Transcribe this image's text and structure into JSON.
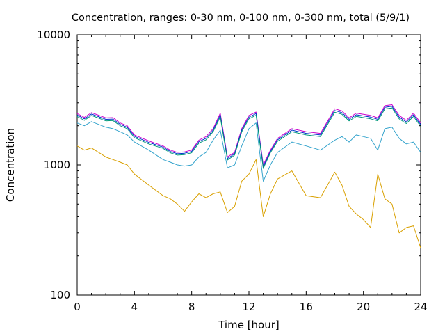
{
  "chart_data": {
    "type": "line",
    "title": "Concentration, ranges: 0-30 nm, 0-100 nm, 0-300 nm, total (5/9/1)",
    "xlabel": "Time [hour]",
    "ylabel": "Concentration",
    "xlim": [
      0,
      24
    ],
    "ylim": [
      100,
      10000
    ],
    "yscale": "log",
    "xticks": [
      0,
      4,
      8,
      12,
      16,
      20,
      24
    ],
    "xtick_labels": [
      "0",
      "4",
      "8",
      "12",
      "16",
      "20",
      "24"
    ],
    "yticks": [
      100,
      1000,
      10000
    ],
    "ytick_labels": [
      "100",
      "1000",
      "10000"
    ],
    "grid": false,
    "legend": "none",
    "series": [
      {
        "color": "#cc00cc",
        "x": [
          0,
          0.5,
          1,
          2,
          2.5,
          3,
          3.5,
          4,
          5,
          6,
          6.5,
          7,
          7.5,
          8,
          8.5,
          9,
          9.5,
          10,
          10.5,
          11,
          11.5,
          12,
          12.5,
          13,
          13.5,
          14,
          15,
          16,
          17,
          18,
          18.5,
          19,
          19.5,
          20,
          20.5,
          21,
          21.5,
          22,
          22.5,
          23,
          23.5,
          24
        ],
        "y": [
          2480,
          2320,
          2520,
          2300,
          2310,
          2100,
          2000,
          1700,
          1530,
          1400,
          1300,
          1250,
          1260,
          1300,
          1550,
          1650,
          1900,
          2500,
          1150,
          1250,
          1900,
          2400,
          2550,
          1000,
          1300,
          1600,
          1900,
          1800,
          1750,
          2700,
          2600,
          2300,
          2500,
          2450,
          2400,
          2300,
          2850,
          2900,
          2400,
          2200,
          2500,
          2100
        ]
      },
      {
        "color": "#0033cc",
        "x": [
          0,
          0.5,
          1,
          2,
          2.5,
          3,
          3.5,
          4,
          5,
          6,
          6.5,
          7,
          7.5,
          8,
          8.5,
          9,
          9.5,
          10,
          10.5,
          11,
          11.5,
          12,
          12.5,
          13,
          13.5,
          14,
          15,
          16,
          17,
          18,
          18.5,
          19,
          19.5,
          20,
          20.5,
          21,
          21.5,
          22,
          22.5,
          23,
          23.5,
          24
        ],
        "y": [
          2420,
          2260,
          2460,
          2240,
          2250,
          2050,
          1950,
          1660,
          1490,
          1370,
          1270,
          1220,
          1230,
          1270,
          1510,
          1600,
          1850,
          2420,
          1120,
          1220,
          1850,
          2330,
          2480,
          970,
          1270,
          1560,
          1850,
          1750,
          1700,
          2620,
          2520,
          2240,
          2430,
          2380,
          2330,
          2240,
          2770,
          2820,
          2330,
          2140,
          2430,
          2040
        ]
      },
      {
        "color": "#00997a",
        "x": [
          0,
          0.5,
          1,
          2,
          2.5,
          3,
          3.5,
          4,
          5,
          6,
          6.5,
          7,
          7.5,
          8,
          8.5,
          9,
          9.5,
          10,
          10.5,
          11,
          11.5,
          12,
          12.5,
          13,
          13.5,
          14,
          15,
          16,
          17,
          18,
          18.5,
          19,
          19.5,
          20,
          20.5,
          21,
          21.5,
          22,
          22.5,
          23,
          23.5,
          24
        ],
        "y": [
          2360,
          2200,
          2400,
          2180,
          2190,
          2000,
          1900,
          1620,
          1450,
          1340,
          1240,
          1190,
          1200,
          1240,
          1470,
          1560,
          1800,
          2340,
          1090,
          1190,
          1800,
          2260,
          2410,
          940,
          1240,
          1520,
          1800,
          1700,
          1650,
          2540,
          2450,
          2180,
          2360,
          2310,
          2260,
          2180,
          2690,
          2740,
          2260,
          2080,
          2360,
          1980
        ]
      },
      {
        "color": "#33a3cc",
        "x": [
          0,
          0.5,
          1,
          2,
          2.5,
          3,
          3.5,
          4,
          5,
          6,
          6.5,
          7,
          7.5,
          8,
          8.5,
          9,
          9.5,
          10,
          10.5,
          11,
          11.5,
          12,
          12.5,
          13,
          13.5,
          14,
          15,
          16,
          17,
          18,
          18.5,
          19,
          19.5,
          20,
          20.5,
          21,
          21.5,
          22,
          22.5,
          23,
          23.5,
          24
        ],
        "y": [
          2100,
          2000,
          2150,
          1950,
          1900,
          1800,
          1700,
          1500,
          1300,
          1100,
          1050,
          1000,
          980,
          1000,
          1150,
          1250,
          1550,
          1850,
          950,
          1000,
          1400,
          1900,
          2100,
          750,
          1000,
          1250,
          1500,
          1400,
          1300,
          1550,
          1650,
          1500,
          1700,
          1650,
          1600,
          1300,
          1900,
          1950,
          1600,
          1450,
          1500,
          1250
        ]
      },
      {
        "color": "#d9a000",
        "x": [
          0,
          0.5,
          1,
          2,
          2.5,
          3,
          3.5,
          4,
          5,
          6,
          6.5,
          7,
          7.5,
          8,
          8.5,
          9,
          9.5,
          10,
          10.5,
          11,
          11.5,
          12,
          12.5,
          13,
          13.5,
          14,
          15,
          16,
          17,
          18,
          18.5,
          19,
          19.5,
          20,
          20.5,
          21,
          21.5,
          22,
          22.5,
          23,
          23.5,
          24
        ],
        "y": [
          1400,
          1300,
          1350,
          1150,
          1100,
          1050,
          1000,
          850,
          700,
          580,
          550,
          500,
          440,
          520,
          600,
          560,
          600,
          620,
          430,
          480,
          750,
          850,
          1100,
          400,
          600,
          780,
          900,
          580,
          560,
          880,
          700,
          480,
          420,
          380,
          330,
          850,
          550,
          500,
          300,
          330,
          340,
          230
        ]
      }
    ]
  }
}
